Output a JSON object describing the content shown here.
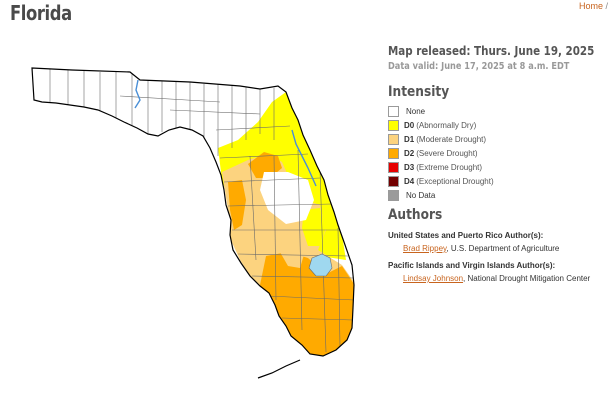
{
  "page": {
    "title": "Florida"
  },
  "breadcrumb": {
    "home": "Home",
    "separator": "/"
  },
  "map": {
    "name": "Florida drought monitor map",
    "categories": {
      "none": "#ffffff",
      "d0": "#ffff00",
      "d1": "#fcd37f",
      "d2": "#ffaa00",
      "water": "#9fd8ef",
      "boundary": "#000000",
      "county": "#6b6b6b"
    }
  },
  "release": {
    "released": "Map released: Thurs. June 19, 2025",
    "valid": "Data valid: June 17, 2025 at 8 a.m. EDT"
  },
  "intensity": {
    "heading": "Intensity",
    "items": [
      {
        "code": "",
        "label": "None",
        "color": "#ffffff"
      },
      {
        "code": "D0",
        "label": "(Abnormally Dry)",
        "color": "#ffff00"
      },
      {
        "code": "D1",
        "label": "(Moderate Drought)",
        "color": "#fcd37f"
      },
      {
        "code": "D2",
        "label": "(Severe Drought)",
        "color": "#ffaa00"
      },
      {
        "code": "D3",
        "label": "(Extreme Drought)",
        "color": "#e60000"
      },
      {
        "code": "D4",
        "label": "(Exceptional Drought)",
        "color": "#730000"
      },
      {
        "code": "",
        "label": "No Data",
        "color": "#9b9b9b"
      }
    ]
  },
  "authors": {
    "heading": "Authors",
    "us": {
      "label": "United States and Puerto Rico Author(s):",
      "name": "Brad Rippey",
      "org": ", U.S. Department of Agriculture"
    },
    "pacific": {
      "label": "Pacific Islands and Virgin Islands Author(s):",
      "name": "Lindsay Johnson",
      "org": ", National Drought Mitigation Center"
    }
  }
}
